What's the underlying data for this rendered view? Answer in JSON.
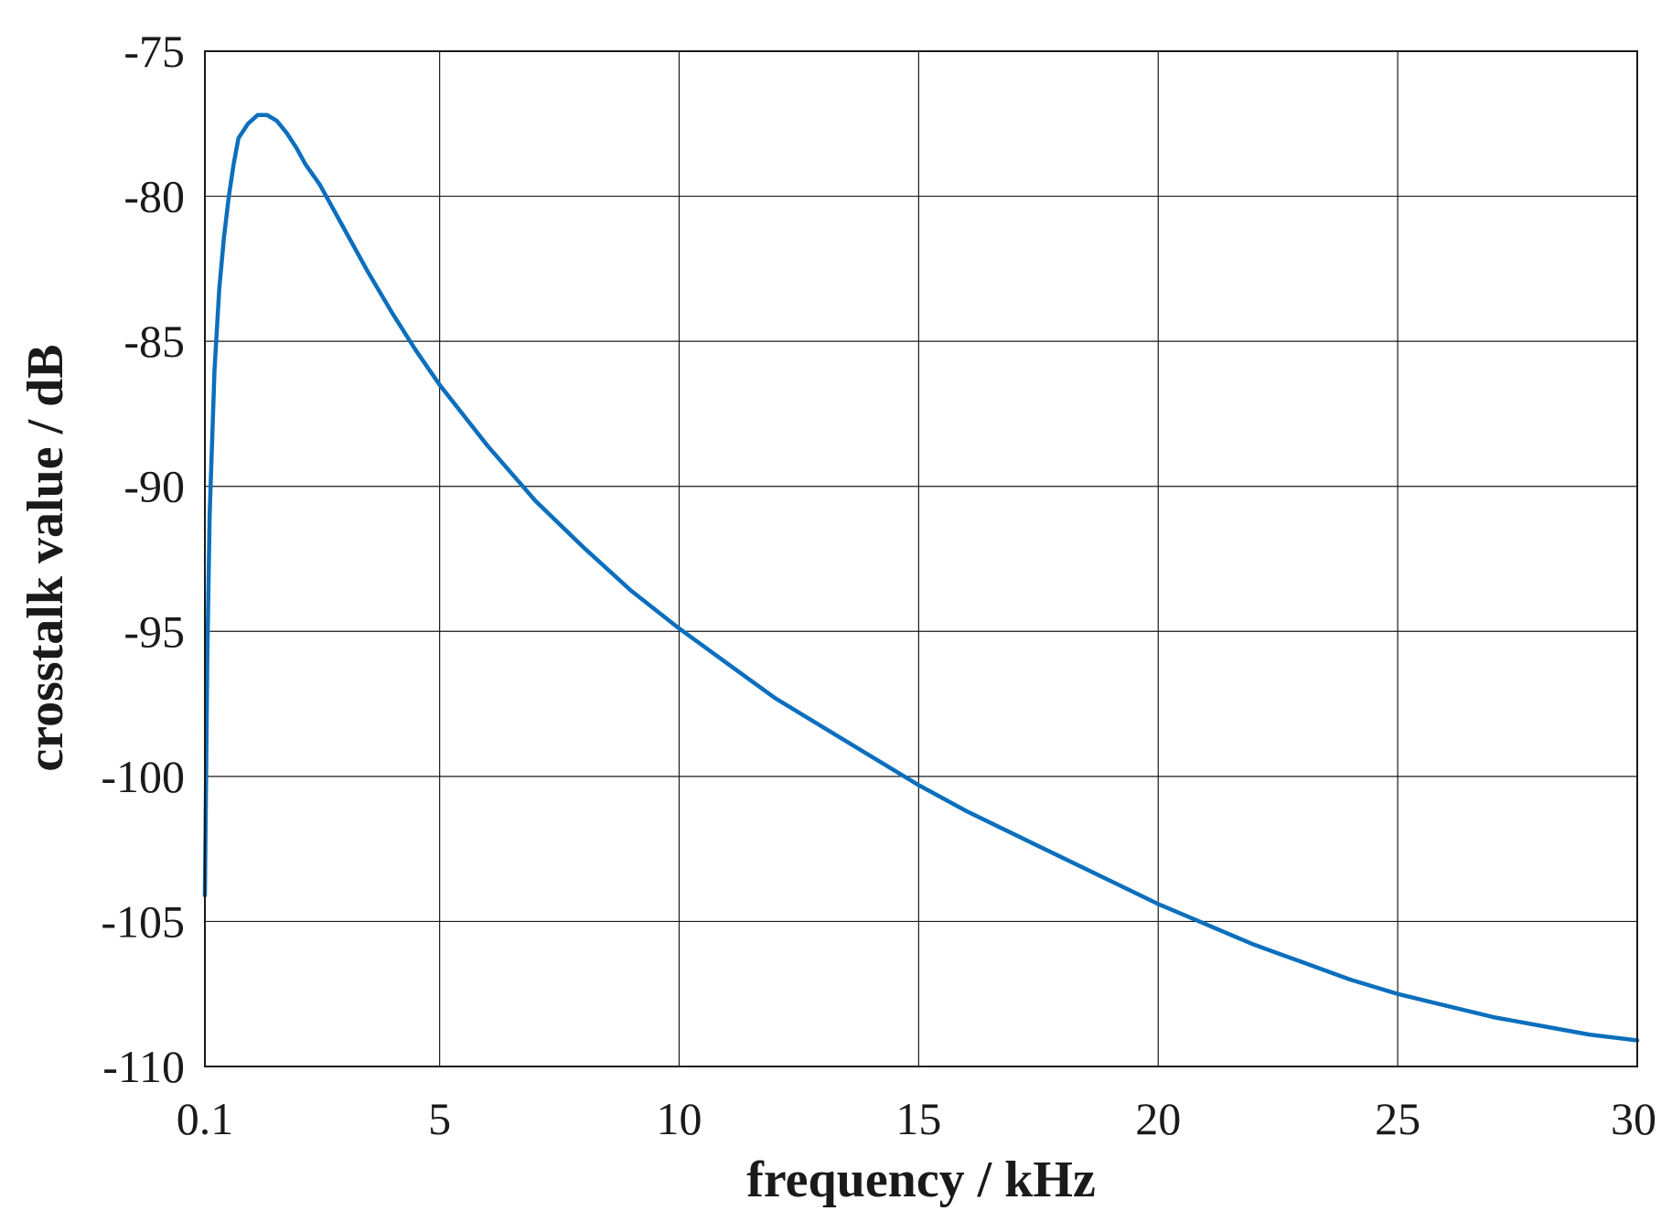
{
  "chart_data": {
    "type": "line",
    "title": "",
    "xlabel": "frequency / kHz",
    "ylabel": "crosstalk value / dB",
    "xlim": [
      0.1,
      30
    ],
    "ylim": [
      -110,
      -75
    ],
    "x_ticks": [
      {
        "value": 0.1,
        "label": "0.1"
      },
      {
        "value": 5,
        "label": "5"
      },
      {
        "value": 10,
        "label": "10"
      },
      {
        "value": 15,
        "label": "15"
      },
      {
        "value": 20,
        "label": "20"
      },
      {
        "value": 25,
        "label": "25"
      },
      {
        "value": 30,
        "label": "30"
      }
    ],
    "y_ticks": [
      {
        "value": -75,
        "label": "-75"
      },
      {
        "value": -80,
        "label": "-80"
      },
      {
        "value": -85,
        "label": "-85"
      },
      {
        "value": -90,
        "label": "-90"
      },
      {
        "value": -95,
        "label": "-95"
      },
      {
        "value": -100,
        "label": "-100"
      },
      {
        "value": -105,
        "label": "-105"
      },
      {
        "value": -110,
        "label": "-110"
      }
    ],
    "grid": true,
    "legend": "none",
    "series": [
      {
        "color": "#0b6fbd",
        "x": [
          0.1,
          0.15,
          0.2,
          0.3,
          0.4,
          0.5,
          0.6,
          0.7,
          0.8,
          1.0,
          1.2,
          1.4,
          1.6,
          1.8,
          2.0,
          2.2,
          2.5,
          2.8,
          3.0,
          3.5,
          4.0,
          4.5,
          5.0,
          6.0,
          7.0,
          8.0,
          9.0,
          10.0,
          11.0,
          12.0,
          13.0,
          14.0,
          15.0,
          16.0,
          17.0,
          18.0,
          19.0,
          20.0,
          21.0,
          22.0,
          23.0,
          24.0,
          25.0,
          26.0,
          27.0,
          28.0,
          29.0,
          30.0
        ],
        "y": [
          -104.1,
          -96.0,
          -91.0,
          -86.0,
          -83.2,
          -81.4,
          -80.0,
          -78.9,
          -78.0,
          -77.5,
          -77.2,
          -77.2,
          -77.4,
          -77.8,
          -78.3,
          -78.9,
          -79.6,
          -80.5,
          -81.1,
          -82.6,
          -84.0,
          -85.3,
          -86.5,
          -88.6,
          -90.5,
          -92.1,
          -93.6,
          -94.9,
          -96.1,
          -97.3,
          -98.3,
          -99.3,
          -100.3,
          -101.2,
          -102.0,
          -102.8,
          -103.6,
          -104.4,
          -105.1,
          -105.8,
          -106.4,
          -107.0,
          -107.5,
          -107.9,
          -108.3,
          -108.6,
          -108.9,
          -109.1
        ]
      }
    ]
  }
}
